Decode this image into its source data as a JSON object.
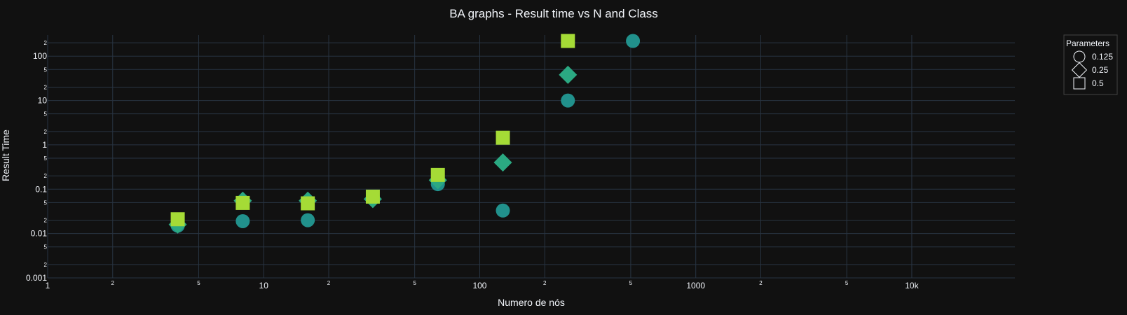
{
  "chart_data": {
    "type": "scatter",
    "title": "BA graphs - Result time vs N and Class",
    "xlabel": "Numero de nós",
    "ylabel": "Result Time",
    "x_scale": "log",
    "y_scale": "log",
    "xlim": [
      1,
      30000
    ],
    "ylim": [
      0.001,
      300
    ],
    "x_major_ticks": [
      {
        "value": 1,
        "label": "1"
      },
      {
        "value": 10,
        "label": "10"
      },
      {
        "value": 100,
        "label": "100"
      },
      {
        "value": 1000,
        "label": "1000"
      },
      {
        "value": 10000,
        "label": "10k"
      }
    ],
    "x_minor_ticks": [
      {
        "value": 2,
        "label": "2"
      },
      {
        "value": 5,
        "label": "5"
      },
      {
        "value": 20,
        "label": "2"
      },
      {
        "value": 50,
        "label": "5"
      },
      {
        "value": 200,
        "label": "2"
      },
      {
        "value": 500,
        "label": "5"
      },
      {
        "value": 2000,
        "label": "2"
      },
      {
        "value": 5000,
        "label": "5"
      }
    ],
    "y_major_ticks": [
      {
        "value": 0.001,
        "label": "0.001"
      },
      {
        "value": 0.01,
        "label": "0.01"
      },
      {
        "value": 0.1,
        "label": "0.1"
      },
      {
        "value": 1,
        "label": "1"
      },
      {
        "value": 10,
        "label": "10"
      },
      {
        "value": 100,
        "label": "100"
      }
    ],
    "y_minor_ticks": [
      {
        "value": 0.002,
        "label": "2"
      },
      {
        "value": 0.005,
        "label": "5"
      },
      {
        "value": 0.02,
        "label": "2"
      },
      {
        "value": 0.05,
        "label": "5"
      },
      {
        "value": 0.2,
        "label": "2"
      },
      {
        "value": 0.5,
        "label": "5"
      },
      {
        "value": 2,
        "label": "2"
      },
      {
        "value": 5,
        "label": "5"
      },
      {
        "value": 20,
        "label": "2"
      },
      {
        "value": 50,
        "label": "5"
      },
      {
        "value": 200,
        "label": "2"
      }
    ],
    "grid": true,
    "legend": {
      "title": "Parameters",
      "placement": "top-right"
    },
    "series": [
      {
        "name": "0.125",
        "symbol": "circle",
        "color": "#21918c",
        "x": [
          4,
          8,
          16,
          32,
          64,
          128,
          256,
          512
        ],
        "y": [
          0.015,
          0.019,
          0.02,
          0.065,
          0.13,
          0.033,
          10,
          220
        ]
      },
      {
        "name": "0.25",
        "symbol": "diamond",
        "color": "#2ba982",
        "x": [
          4,
          8,
          16,
          32,
          64,
          128,
          256
        ],
        "y": [
          0.016,
          0.055,
          0.055,
          0.06,
          0.16,
          0.4,
          38
        ]
      },
      {
        "name": "0.5",
        "symbol": "square",
        "color": "#a5db36",
        "x": [
          4,
          8,
          16,
          32,
          64,
          128,
          256
        ],
        "y": [
          0.021,
          0.049,
          0.048,
          0.068,
          0.21,
          1.45,
          220
        ]
      }
    ]
  },
  "colors": {
    "background": "#111111",
    "grid": "#283442",
    "text": "#f2f5fa",
    "legend_border": "#444444"
  }
}
